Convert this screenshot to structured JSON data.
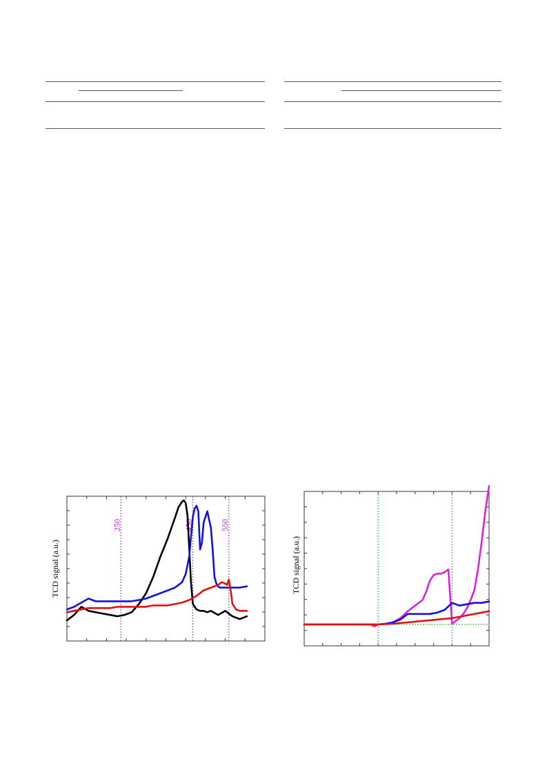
{
  "colors": {
    "black": "#000000",
    "blue": "#1010e6",
    "red": "#e01010",
    "magenta": "#e020e0",
    "purple_dotted": "#b020d0",
    "green_dotted": "#22aa22",
    "axis": "#333333"
  },
  "chart_data": [
    {
      "type": "line",
      "title": "",
      "xlabel": "",
      "ylabel": "TCD signal (a.u.)",
      "xlim": [
        100,
        650
      ],
      "ylim": [
        0,
        100
      ],
      "reference_lines": [
        {
          "x": 250,
          "label": "250"
        },
        {
          "x": 450,
          "label": "450"
        },
        {
          "x": 550,
          "label": "550"
        }
      ],
      "series": [
        {
          "color": "black",
          "x": [
            100,
            120,
            140,
            160,
            180,
            200,
            220,
            240,
            260,
            280,
            300,
            320,
            340,
            360,
            380,
            400,
            410,
            420,
            425,
            430,
            435,
            440,
            445,
            450,
            460,
            470,
            480,
            490,
            500,
            520,
            540,
            560,
            580,
            600
          ],
          "y": [
            8,
            12,
            18,
            15,
            14,
            13,
            12,
            11,
            12,
            14,
            20,
            28,
            40,
            55,
            68,
            83,
            91,
            95,
            96,
            94,
            85,
            60,
            35,
            20,
            16,
            15,
            15,
            14,
            15,
            12,
            15,
            11,
            9,
            11
          ]
        },
        {
          "color": "blue",
          "x": [
            100,
            120,
            140,
            160,
            180,
            200,
            220,
            240,
            260,
            280,
            300,
            320,
            340,
            360,
            380,
            400,
            410,
            420,
            430,
            440,
            445,
            450,
            455,
            460,
            465,
            470,
            475,
            480,
            490,
            500,
            505,
            510,
            515,
            520,
            525,
            530,
            540,
            550,
            560,
            580,
            600
          ],
          "y": [
            16,
            18,
            21,
            24,
            22,
            22,
            22,
            22,
            22,
            22,
            23,
            24,
            26,
            28,
            30,
            32,
            34,
            36,
            42,
            55,
            70,
            84,
            90,
            92,
            88,
            60,
            65,
            80,
            88,
            76,
            60,
            40,
            35,
            33,
            32,
            32,
            32,
            32,
            32,
            32,
            33
          ]
        },
        {
          "color": "red",
          "x": [
            100,
            120,
            140,
            160,
            180,
            200,
            220,
            240,
            260,
            280,
            300,
            320,
            340,
            360,
            380,
            400,
            420,
            440,
            460,
            480,
            500,
            520,
            530,
            540,
            545,
            550,
            555,
            560,
            570,
            580,
            600
          ],
          "y": [
            14,
            15,
            16,
            17,
            17,
            17,
            17,
            18,
            18,
            18,
            18,
            18,
            19,
            19,
            19,
            20,
            21,
            23,
            26,
            30,
            32,
            34,
            36,
            35,
            34,
            38,
            30,
            20,
            16,
            15,
            15
          ]
        }
      ]
    },
    {
      "type": "line",
      "title": "",
      "xlabel": "",
      "ylabel": "TCD signal (a.u.)",
      "xlim": [
        0,
        500
      ],
      "ylim": [
        0,
        100
      ],
      "reference_lines": [
        {
          "x": 200,
          "orientation": "vertical"
        },
        {
          "x": 400,
          "orientation": "vertical"
        },
        {
          "y": 0.5,
          "orientation": "horizontal"
        }
      ],
      "series": [
        {
          "color": "magenta",
          "x": [
            0,
            50,
            100,
            150,
            180,
            190,
            200,
            220,
            240,
            260,
            280,
            300,
            320,
            330,
            340,
            350,
            360,
            370,
            380,
            390,
            395,
            400,
            410,
            420,
            430,
            440,
            450,
            460,
            470,
            480,
            490,
            500
          ],
          "y": [
            0.5,
            0.5,
            0.5,
            0.5,
            0.5,
            -1,
            0.5,
            1,
            2,
            5,
            10,
            14,
            18,
            24,
            32,
            36,
            37,
            37,
            38,
            40,
            20,
            1,
            3,
            5,
            8,
            12,
            18,
            25,
            40,
            60,
            82,
            100
          ]
        },
        {
          "color": "blue",
          "x": [
            0,
            50,
            100,
            150,
            200,
            220,
            240,
            260,
            280,
            290,
            300,
            320,
            340,
            360,
            380,
            400,
            410,
            420,
            440,
            460,
            480,
            500
          ],
          "y": [
            0.5,
            0.5,
            0.5,
            0.5,
            0.5,
            1,
            2,
            4,
            8,
            8,
            8,
            8,
            8,
            9,
            11,
            16,
            15,
            14,
            15,
            16,
            16,
            17
          ]
        },
        {
          "color": "red",
          "x": [
            0,
            50,
            100,
            150,
            200,
            240,
            280,
            320,
            360,
            400,
            440,
            480,
            500
          ],
          "y": [
            0.5,
            0.5,
            0.5,
            0.5,
            0.5,
            1,
            2,
            3,
            4,
            5,
            7,
            9,
            10
          ]
        }
      ]
    }
  ]
}
